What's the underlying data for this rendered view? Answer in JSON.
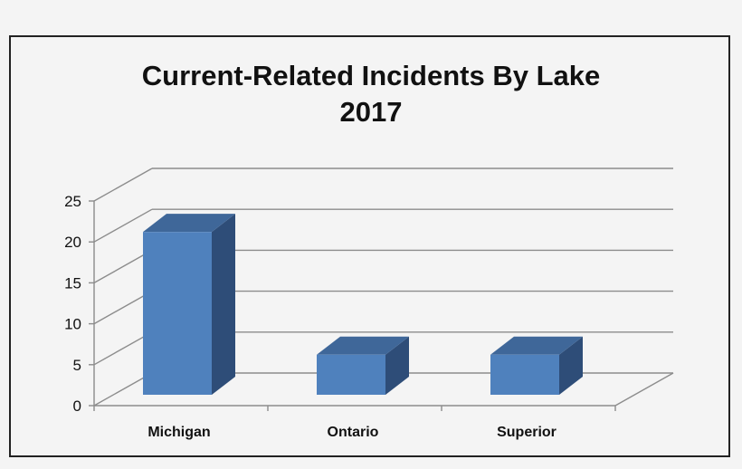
{
  "chart_data": {
    "type": "bar",
    "title": "Current-Related Incidents By Lake",
    "subtitle": "2017",
    "categories": [
      "Michigan",
      "Ontario",
      "Superior"
    ],
    "values": [
      21,
      6,
      6
    ],
    "ylim": [
      0,
      25
    ],
    "yticks": [
      0,
      5,
      10,
      15,
      20,
      25
    ],
    "grid": true,
    "legend": false,
    "colors": {
      "bar_front": "#4f81bd",
      "bar_side": "#2e4d78",
      "bar_top": "#3f6799",
      "grid": "#8c8c8c",
      "text": "#111111"
    }
  }
}
